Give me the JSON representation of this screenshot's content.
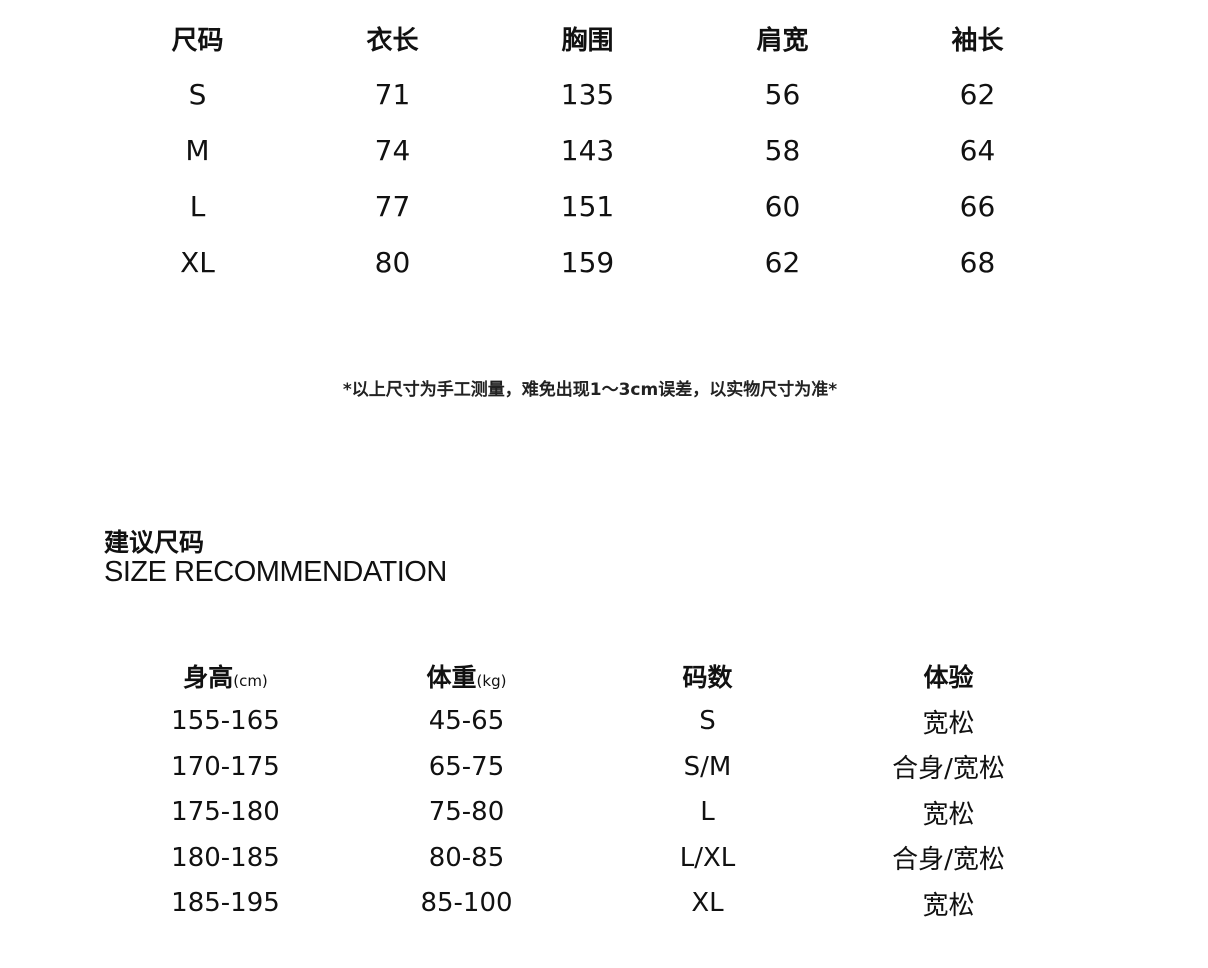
{
  "size_chart": {
    "headers": [
      "尺码",
      "衣长",
      "胸围",
      "肩宽",
      "袖长"
    ],
    "rows": [
      [
        "S",
        "71",
        "135",
        "56",
        "62"
      ],
      [
        "M",
        "74",
        "143",
        "58",
        "64"
      ],
      [
        "L",
        "77",
        "151",
        "60",
        "66"
      ],
      [
        "XL",
        "80",
        "159",
        "62",
        "68"
      ]
    ]
  },
  "note": "*以上尺寸为手工测量，难免出现1～3cm误差，以实物尺寸为准*",
  "recommendation": {
    "title": "建议尺码",
    "subtitle": "SIZE RECOMMENDATION",
    "headers": [
      {
        "label": "身高",
        "unit": "(cm)"
      },
      {
        "label": "体重",
        "unit": "(kg)"
      },
      {
        "label": "码数",
        "unit": ""
      },
      {
        "label": "体验",
        "unit": ""
      }
    ],
    "rows": [
      [
        "155-165",
        "45-65",
        "S",
        "宽松"
      ],
      [
        "170-175",
        "65-75",
        "S/M",
        "合身/宽松"
      ],
      [
        "175-180",
        "75-80",
        "L",
        "宽松"
      ],
      [
        "180-185",
        "80-85",
        "L/XL",
        "合身/宽松"
      ],
      [
        "185-195",
        "85-100",
        "XL",
        "宽松"
      ]
    ]
  }
}
